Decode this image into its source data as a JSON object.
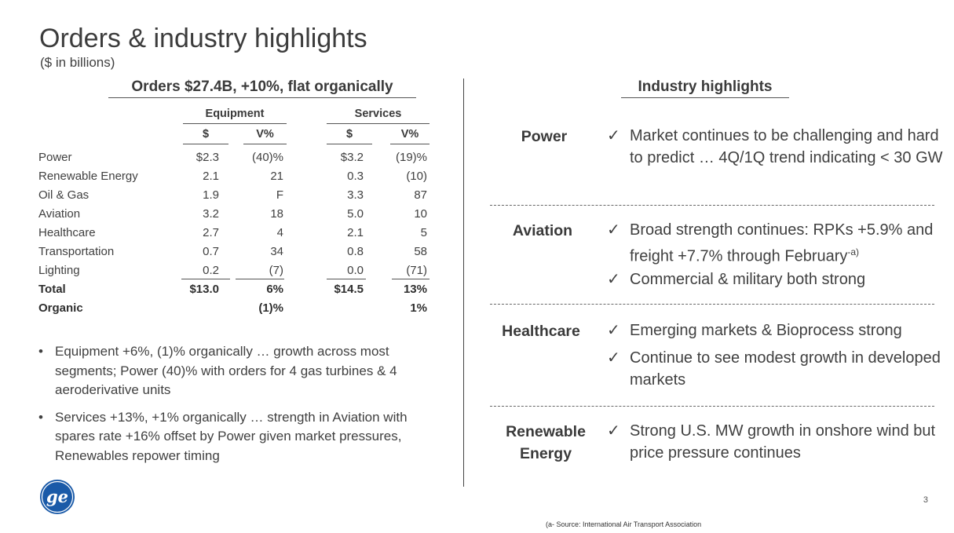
{
  "title": "Orders & industry highlights",
  "subtitle": "($ in billions)",
  "orders": {
    "heading": "Orders $27.4B, +10%, flat organically",
    "equipment_label": "Equipment",
    "services_label": "Services",
    "col_dollar": "$",
    "col_v": "V%",
    "rows": [
      {
        "name": "Power",
        "eq": "$2.3",
        "eqv": "(40)%",
        "sv": "$3.2",
        "svv": "(19)%"
      },
      {
        "name": "Renewable Energy",
        "eq": "2.1",
        "eqv": "21",
        "sv": "0.3",
        "svv": "(10)"
      },
      {
        "name": "Oil & Gas",
        "eq": "1.9",
        "eqv": "F",
        "sv": "3.3",
        "svv": "87"
      },
      {
        "name": "Aviation",
        "eq": "3.2",
        "eqv": "18",
        "sv": "5.0",
        "svv": "10"
      },
      {
        "name": "Healthcare",
        "eq": "2.7",
        "eqv": "4",
        "sv": "2.1",
        "svv": "5"
      },
      {
        "name": "Transportation",
        "eq": "0.7",
        "eqv": "34",
        "sv": "0.8",
        "svv": "58"
      },
      {
        "name": "Lighting",
        "eq": "0.2",
        "eqv": "(7)",
        "sv": "0.0",
        "svv": "(71)"
      }
    ],
    "total": {
      "name": "Total",
      "eq": "$13.0",
      "eqv": "6%",
      "sv": "$14.5",
      "svv": "13%"
    },
    "organic": {
      "name": "Organic",
      "eqv": "(1)%",
      "svv": "1%"
    },
    "bullets": [
      "Equipment +6%, (1)% organically … growth across most segments; Power (40)% with orders for 4 gas turbines & 4 aeroderivative units",
      "Services +13%, +1% organically … strength in Aviation with spares rate +16% offset by Power given market pressures, Renewables repower timing"
    ],
    "bullet_glyph": "•"
  },
  "industry": {
    "heading": "Industry highlights",
    "check_glyph": "✓",
    "power": {
      "label": "Power",
      "points": [
        "Market continues to be challenging and hard to predict … 4Q/1Q trend indicating < 30 GW"
      ]
    },
    "aviation": {
      "label": "Aviation",
      "point1": "Broad strength continues: RPKs +5.9% and freight +7.7% through February",
      "point1_sup": "-a)",
      "point2": "Commercial & military both strong"
    },
    "healthcare": {
      "label": "Healthcare",
      "points": [
        "Emerging markets & Bioprocess strong",
        "Continue to see modest growth in developed markets"
      ]
    },
    "renewable": {
      "label_line1": "Renewable",
      "label_line2": "Energy",
      "points": [
        "Strong U.S. MW growth in onshore wind but price pressure continues"
      ]
    }
  },
  "logo_icon": "ge-logo-icon",
  "logo_color": "#1a5aa8",
  "page_number": "3",
  "footnote": "(a- Source: International Air Transport Association"
}
